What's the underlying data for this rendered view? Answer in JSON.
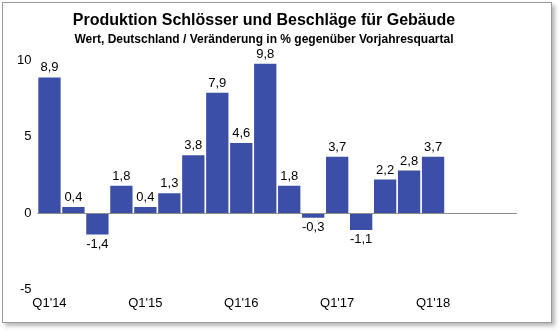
{
  "chart_data": {
    "type": "bar",
    "title": "Produktion Schlösser und Beschläge für Gebäude",
    "subtitle": "Wert, Deutschland / Veränderung in % gegenüber Vorjahresquartal",
    "categories": [
      "Q1'14",
      null,
      null,
      null,
      "Q1'15",
      null,
      null,
      null,
      "Q1'16",
      null,
      null,
      null,
      "Q1'17",
      null,
      null,
      null,
      "Q1'18",
      null,
      null,
      null
    ],
    "values": [
      8.9,
      0.4,
      -1.4,
      1.8,
      0.4,
      1.3,
      3.8,
      7.9,
      4.6,
      9.8,
      1.8,
      -0.3,
      3.7,
      -1.1,
      2.2,
      2.8,
      3.7,
      null,
      null,
      null
    ],
    "value_labels": [
      "8,9",
      "0,4",
      "-1,4",
      "1,8",
      "0,4",
      "1,3",
      "3,8",
      "7,9",
      "4,6",
      "9,8",
      "1,8",
      "-0,3",
      "3,7",
      "-1,1",
      "2,2",
      "2,8",
      "3,7",
      null,
      null,
      null
    ],
    "data_labels": true,
    "color": "#3b4fa8",
    "ylim": [
      -5,
      10
    ],
    "yticks": [
      -5,
      0,
      5,
      10
    ],
    "grid": false
  }
}
